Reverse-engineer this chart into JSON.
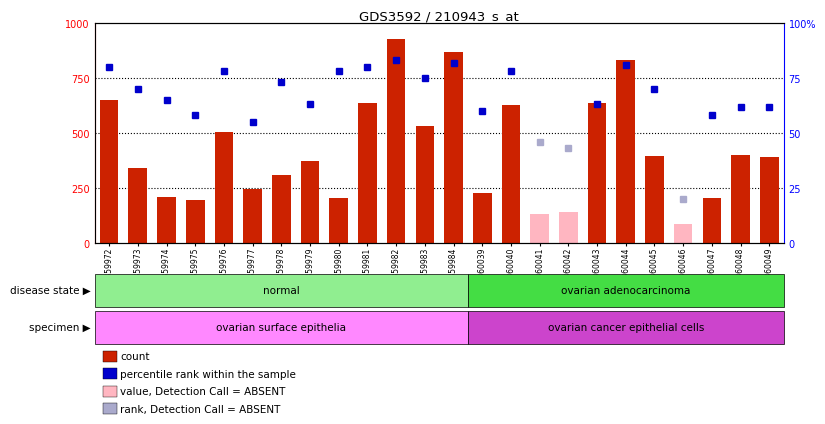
{
  "title": "GDS3592 / 210943_s_at",
  "samples": [
    "GSM359972",
    "GSM359973",
    "GSM359974",
    "GSM359975",
    "GSM359976",
    "GSM359977",
    "GSM359978",
    "GSM359979",
    "GSM359980",
    "GSM359981",
    "GSM359982",
    "GSM359983",
    "GSM359984",
    "GSM360039",
    "GSM360040",
    "GSM360041",
    "GSM360042",
    "GSM360043",
    "GSM360044",
    "GSM360045",
    "GSM360046",
    "GSM360047",
    "GSM360048",
    "GSM360049"
  ],
  "counts": [
    650,
    340,
    210,
    195,
    505,
    245,
    310,
    370,
    205,
    635,
    930,
    530,
    870,
    225,
    625,
    0,
    0,
    635,
    830,
    395,
    0,
    205,
    400,
    390
  ],
  "absent_counts": [
    0,
    0,
    0,
    0,
    0,
    0,
    0,
    0,
    0,
    0,
    0,
    0,
    0,
    0,
    0,
    130,
    140,
    0,
    0,
    0,
    85,
    0,
    0,
    0
  ],
  "percentile_ranks": [
    80,
    70,
    65,
    58,
    78,
    55,
    73,
    63,
    78,
    80,
    83,
    75,
    82,
    60,
    78,
    0,
    0,
    63,
    81,
    70,
    0,
    58,
    62,
    62
  ],
  "absent_ranks": [
    0,
    0,
    0,
    0,
    0,
    0,
    0,
    0,
    0,
    0,
    0,
    0,
    0,
    0,
    0,
    46,
    43,
    0,
    0,
    0,
    20,
    0,
    0,
    0
  ],
  "is_absent_count": [
    false,
    false,
    false,
    false,
    false,
    false,
    false,
    false,
    false,
    false,
    false,
    false,
    false,
    false,
    false,
    true,
    true,
    false,
    false,
    false,
    true,
    false,
    false,
    false
  ],
  "is_absent_rank": [
    false,
    false,
    false,
    false,
    false,
    false,
    false,
    false,
    false,
    false,
    false,
    false,
    false,
    false,
    false,
    true,
    true,
    false,
    false,
    false,
    true,
    false,
    false,
    false
  ],
  "disease_state_groups": [
    {
      "label": "normal",
      "start": 0,
      "end": 13,
      "color": "#90EE90"
    },
    {
      "label": "ovarian adenocarcinoma",
      "start": 13,
      "end": 24,
      "color": "#44DD44"
    }
  ],
  "specimen_groups": [
    {
      "label": "ovarian surface epithelia",
      "start": 0,
      "end": 13,
      "color": "#FF88FF"
    },
    {
      "label": "ovarian cancer epithelial cells",
      "start": 13,
      "end": 24,
      "color": "#CC44CC"
    }
  ],
  "bar_color": "#CC2200",
  "absent_bar_color": "#FFB6C1",
  "dot_color": "#0000CC",
  "absent_dot_color": "#AAAACC",
  "grid_color": "#000000",
  "background_color": "#ffffff",
  "ylim_left": [
    0,
    1000
  ],
  "ylim_right": [
    0,
    100
  ],
  "yticks_left": [
    0,
    250,
    500,
    750,
    1000
  ],
  "yticks_right": [
    0,
    25,
    50,
    75,
    100
  ],
  "ytick_labels_left": [
    "0",
    "250",
    "500",
    "750",
    "1000"
  ],
  "ytick_labels_right": [
    "0",
    "25",
    "50",
    "75",
    "100%"
  ],
  "hlines": [
    250,
    500,
    750
  ],
  "legend_items": [
    {
      "label": "count",
      "color": "#CC2200"
    },
    {
      "label": "percentile rank within the sample",
      "color": "#0000CC"
    },
    {
      "label": "value, Detection Call = ABSENT",
      "color": "#FFB6C1"
    },
    {
      "label": "rank, Detection Call = ABSENT",
      "color": "#AAAACC"
    }
  ],
  "ds_label": "disease state",
  "sp_label": "specimen"
}
